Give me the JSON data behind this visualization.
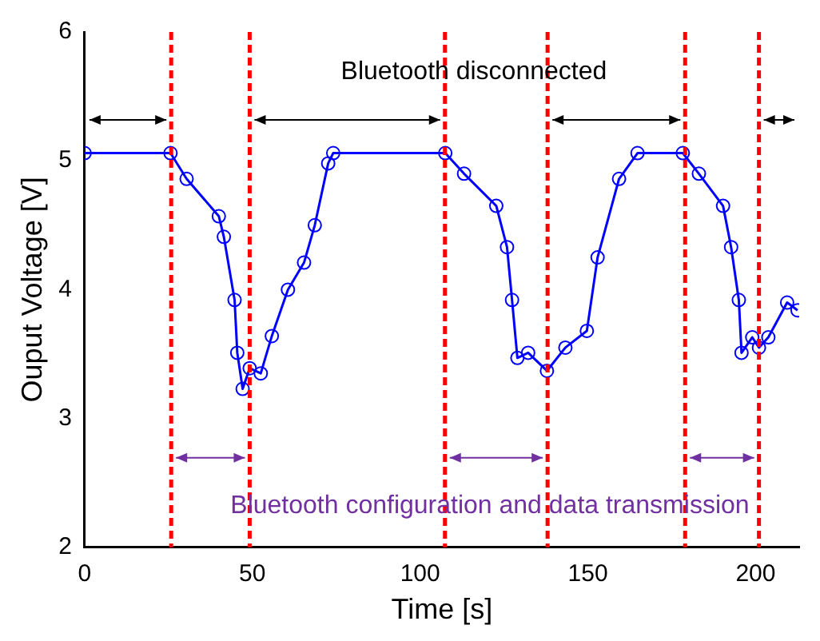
{
  "chart_data": {
    "type": "line",
    "xlabel": "Time [s]",
    "ylabel": "Ouput Voltage [V]",
    "xlim": [
      0,
      213
    ],
    "xticks": [
      0,
      50,
      100,
      150,
      200
    ],
    "ylim": [
      2,
      6
    ],
    "yticks": [
      2,
      3,
      4,
      5,
      6
    ],
    "marker": "circle",
    "grid": false,
    "legend": false,
    "series": [
      {
        "color": "#0000ff",
        "x": [
          0,
          25.6,
          30.4,
          40,
          41.5,
          44.7,
          45.5,
          47.1,
          49.2,
          52.5,
          55.8,
          60.6,
          65.4,
          68.6,
          72.6,
          74.1,
          107.5,
          113.1,
          122.7,
          125.9,
          127.4,
          129,
          132.2,
          137.8,
          143.3,
          149.7,
          152.9,
          159.3,
          164.8,
          178.3,
          183.1,
          190.3,
          192.7,
          195,
          195.8,
          199,
          201,
          203.8,
          209.4,
          212.5
        ],
        "values": [
          5.06,
          5.06,
          4.86,
          4.57,
          4.41,
          3.92,
          3.51,
          3.23,
          3.39,
          3.35,
          3.64,
          4.0,
          4.21,
          4.5,
          4.98,
          5.06,
          5.06,
          4.9,
          4.65,
          4.33,
          3.92,
          3.47,
          3.51,
          3.37,
          3.55,
          3.68,
          4.25,
          4.86,
          5.06,
          5.06,
          4.9,
          4.65,
          4.33,
          3.92,
          3.51,
          3.63,
          3.55,
          3.63,
          3.9,
          3.84
        ]
      }
    ],
    "ref_lines": [
      {
        "axis": "x",
        "value": 25.8,
        "color": "#ff0000",
        "line_style": "dashed"
      },
      {
        "axis": "x",
        "value": 49.2,
        "color": "#ff0000",
        "line_style": "dashed"
      },
      {
        "axis": "x",
        "value": 107.4,
        "color": "#ff0000",
        "line_style": "dashed"
      },
      {
        "axis": "x",
        "value": 138,
        "color": "#ff0000",
        "line_style": "dashed"
      },
      {
        "axis": "x",
        "value": 179,
        "color": "#ff0000",
        "line_style": "dashed"
      },
      {
        "axis": "x",
        "value": 201,
        "color": "#ff0000",
        "line_style": "dashed"
      }
    ],
    "annotations": [
      "Bluetooth disconnected",
      "Bluetooth configuration and data transmission"
    ]
  }
}
